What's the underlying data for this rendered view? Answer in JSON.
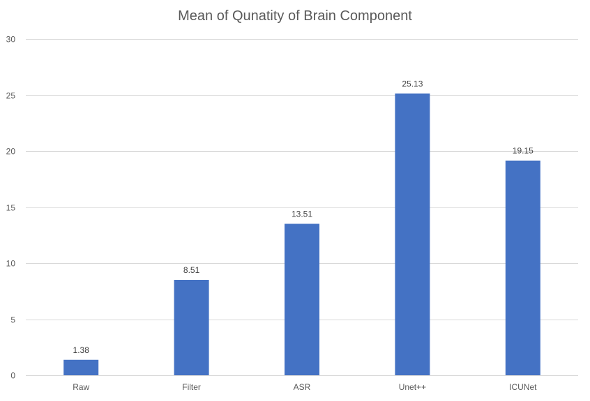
{
  "chart_data": {
    "type": "bar",
    "title": "Mean of Qunatity of Brain Component",
    "categories": [
      "Raw",
      "Filter",
      "ASR",
      "Unet++",
      "ICUNet"
    ],
    "series": [
      {
        "values": [
          1.38,
          8.51,
          13.51,
          25.13,
          19.15
        ],
        "color": "#4472C4"
      }
    ],
    "data_labels": [
      "1.38",
      "8.51",
      "13.51",
      "25.13",
      "19.15"
    ],
    "ylim": [
      0,
      30
    ],
    "yticks": [
      0,
      5,
      10,
      15,
      20,
      25,
      30
    ],
    "grid": true,
    "legend": "none"
  }
}
